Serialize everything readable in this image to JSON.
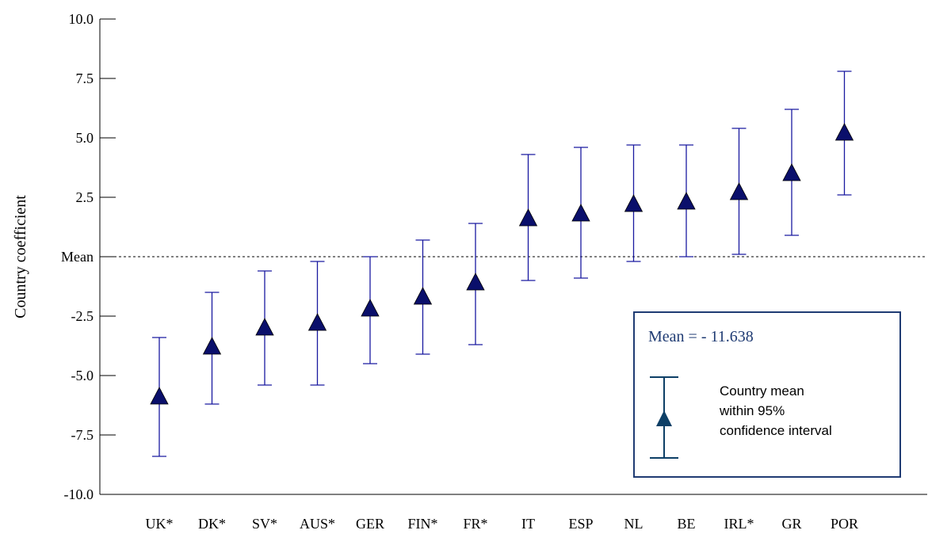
{
  "chart_data": {
    "type": "scatter",
    "ylabel": "Country coefficient",
    "ylim": [
      -10,
      10
    ],
    "y_ticks": [
      {
        "value": 10,
        "label": "10.0"
      },
      {
        "value": 7.5,
        "label": "7.5"
      },
      {
        "value": 5,
        "label": "5.0"
      },
      {
        "value": 2.5,
        "label": "2.5"
      },
      {
        "value": 0,
        "label": "Mean"
      },
      {
        "value": -2.5,
        "label": "-2.5"
      },
      {
        "value": -5,
        "label": "-5.0"
      },
      {
        "value": -7.5,
        "label": "-7.5"
      },
      {
        "value": -10,
        "label": "-10.0"
      }
    ],
    "categories": [
      "UK*",
      "DK*",
      "SV*",
      "AUS*",
      "GER",
      "FIN*",
      "FR*",
      "IT",
      "ESP",
      "NL",
      "BE",
      "IRL*",
      "GR",
      "POR"
    ],
    "values": [
      -5.9,
      -3.8,
      -3.0,
      -2.8,
      -2.2,
      -1.7,
      -1.1,
      1.6,
      1.8,
      2.2,
      2.3,
      2.7,
      3.5,
      5.2
    ],
    "lower": [
      -8.4,
      -6.2,
      -5.4,
      -5.4,
      -4.5,
      -4.1,
      -3.7,
      -1.0,
      -0.9,
      -0.2,
      0.0,
      0.1,
      0.9,
      2.6
    ],
    "upper": [
      -3.4,
      -1.5,
      -0.6,
      -0.2,
      0.0,
      0.7,
      1.4,
      4.3,
      4.6,
      4.7,
      4.7,
      5.4,
      6.2,
      7.8
    ],
    "mean_line": 0,
    "grid": false,
    "legend": {
      "title": "Mean = - 11.638",
      "lines": [
        "Country mean",
        "within 95%",
        "confidence interval"
      ],
      "placement": "bottom-right"
    },
    "colors": {
      "marker": "#0a0f6b",
      "errorbar": "#1a1aa0",
      "legend_marker": "#0d3f66",
      "legend_border": "#1f3b73"
    }
  }
}
